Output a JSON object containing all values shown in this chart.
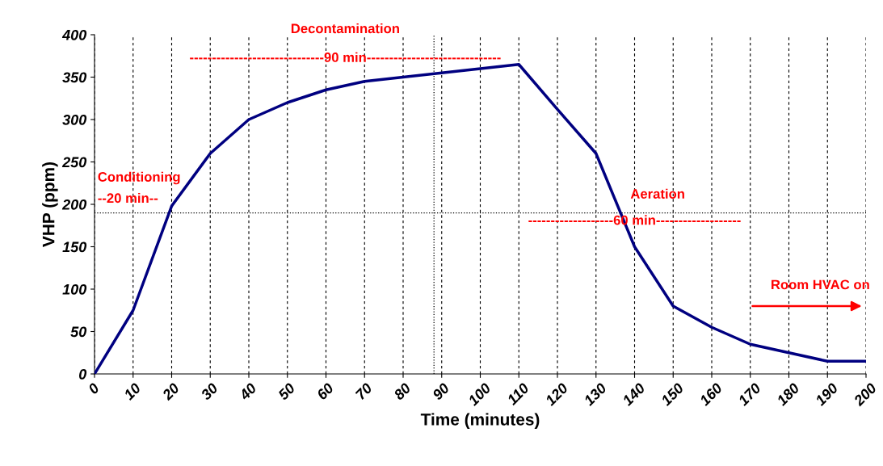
{
  "chart_data": {
    "type": "line",
    "xlabel": "Time (minutes)",
    "ylabel": "VHP (ppm)",
    "x": [
      0,
      10,
      20,
      30,
      40,
      50,
      60,
      70,
      80,
      90,
      100,
      110,
      120,
      130,
      140,
      150,
      160,
      170,
      180,
      190,
      200
    ],
    "series": [
      {
        "color": "#000080",
        "values": [
          0,
          75,
          198,
          260,
          300,
          320,
          335,
          345,
          350,
          355,
          360,
          365,
          312,
          260,
          150,
          80,
          55,
          35,
          25,
          15,
          15
        ]
      }
    ],
    "xlim": [
      0,
      200
    ],
    "ylim": [
      0,
      400
    ],
    "xticks": [
      0,
      10,
      20,
      30,
      40,
      50,
      60,
      70,
      80,
      90,
      100,
      110,
      120,
      130,
      140,
      150,
      160,
      170,
      180,
      190,
      200
    ],
    "yticks": [
      0,
      50,
      100,
      150,
      200,
      250,
      300,
      350,
      400
    ],
    "grid": "x",
    "marker": "none",
    "line_style": "solid",
    "ref_lines": [
      {
        "axis": "x",
        "value": 88,
        "line_style": "dotted",
        "color": "#000000"
      },
      {
        "axis": "y",
        "value": 190,
        "line_style": "dotted",
        "color": "#000000"
      }
    ],
    "annotations": [
      "Decontamination",
      "------------------------------90 min------------------------------",
      "Conditioning",
      "--20 min--",
      "Aeration",
      "-------------------60 min-------------------",
      "Room HVAC on"
    ]
  }
}
